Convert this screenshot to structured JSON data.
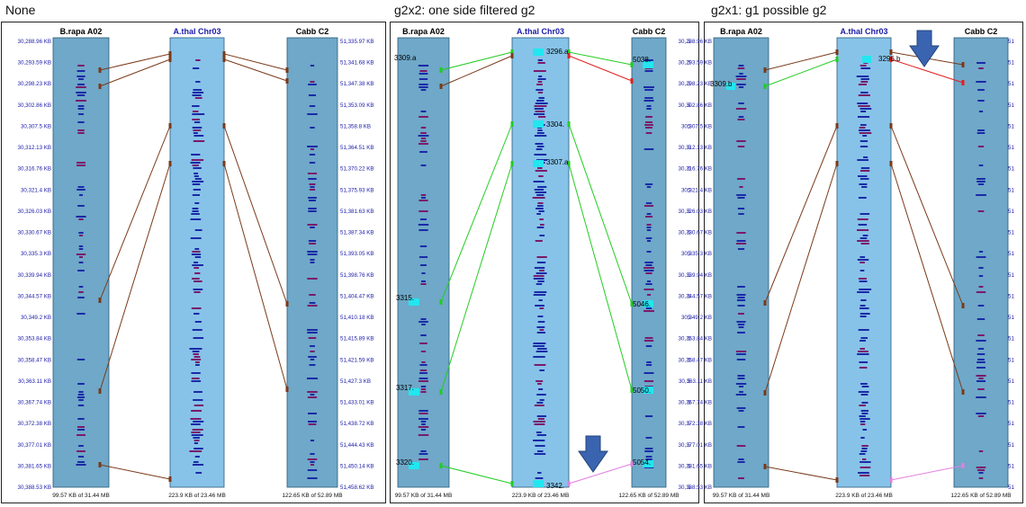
{
  "panels": [
    {
      "title": "None",
      "tracks": [
        {
          "name": "B.rapa A02",
          "footer": "99.57 KB of 31.44 MB"
        },
        {
          "name": "A.thal Chr03",
          "footer": "223.9 KB of 23.46 MB"
        },
        {
          "name": "Cabb C2",
          "footer": "122.65 KB of 52.89 MB"
        }
      ],
      "left_ticks": [
        "30,288.96 KB",
        "30,293.59 KB",
        "30,298.23 KB",
        "30,302.86 KB",
        "30,307.5 KB",
        "30,312.13 KB",
        "30,316.76 KB",
        "30,321.4 KB",
        "30,326.03 KB",
        "30,330.67 KB",
        "30,335.3 KB",
        "30,339.94 KB",
        "30,344.57 KB",
        "30,349.2 KB",
        "30,353.84 KB",
        "30,358.47 KB",
        "30,363.11 KB",
        "30,367.74 KB",
        "30,372.38 KB",
        "30,377.01 KB",
        "30,381.65 KB",
        "30,388.53 KB"
      ],
      "right_ticks": [
        "51,335.97 KB",
        "51,341.68 KB",
        "51,347.38 KB",
        "51,353.09 KB",
        "51,358.8 KB",
        "51,364.51 KB",
        "51,370.22 KB",
        "51,375.93 KB",
        "51,381.63 KB",
        "51,387.34 KB",
        "51,393.05 KB",
        "51,398.76 KB",
        "51,404.47 KB",
        "51,410.18 KB",
        "51,415.89 KB",
        "51,421.59 KB",
        "51,427.3 KB",
        "51,433.01 KB",
        "51,438.72 KB",
        "51,444.43 KB",
        "51,450.14 KB",
        "51,458.62 KB"
      ],
      "labels": []
    },
    {
      "title": "g2x2: one side filtered g2",
      "tracks": [
        {
          "name": "B.rapa A02",
          "footer": "99.57 KB of 31.44 MB"
        },
        {
          "name": "A.thal Chr03",
          "footer": "223.9 KB of 23.46 MB"
        },
        {
          "name": "Cabb C2",
          "footer": "122.65 KB of 52.89 MB"
        }
      ],
      "left_ticks": [],
      "right_ticks": [
        "5",
        "5",
        "5",
        "5",
        "5",
        "5",
        "5",
        "5",
        "5",
        "5",
        "5",
        "5",
        "5",
        "5",
        "5",
        "5",
        "5",
        "5",
        "5",
        "5",
        "5",
        "5"
      ],
      "labels": [
        "3309.a",
        "3296.a",
        "5038.",
        "3304.",
        "3307.a",
        "3315.",
        "5046.",
        "3317.",
        "5050.",
        "3320.",
        "3342.",
        "5054."
      ]
    },
    {
      "title": "g2x1: g1 possible g2",
      "tracks": [
        {
          "name": "B.rapa A02",
          "footer": "99.57 KB of 31.44 MB"
        },
        {
          "name": "A.thal Chr03",
          "footer": "223.9 KB of 23.46 MB"
        },
        {
          "name": "Cabb C2",
          "footer": "122.65 KB of 52.89 MB"
        }
      ],
      "left_ticks": [
        "30,288.96 KB",
        "30,293.59 KB",
        "30,298.23 KB",
        "30,302.86 KB",
        "30,307.5 KB",
        "30,312.13 KB",
        "30,316.76 KB",
        "30,321.4 KB",
        "30,326.03 KB",
        "30,330.67 KB",
        "30,335.3 KB",
        "30,339.94 KB",
        "30,344.57 KB",
        "30,349.2 KB",
        "30,353.84 KB",
        "30,358.47 KB",
        "30,363.11 KB",
        "30,367.74 KB",
        "30,372.38 KB",
        "30,377.01 KB",
        "30,381.65 KB",
        "30,388.53 KB"
      ],
      "right_ticks": [
        "51",
        "51",
        "51",
        "51",
        "51",
        "51",
        "51",
        "51",
        "51",
        "51",
        "51",
        "51",
        "51",
        "51",
        "51",
        "51",
        "51",
        "51",
        "51",
        "51",
        "51",
        "51"
      ],
      "labels": [
        "3309.b",
        "3296.b"
      ]
    }
  ],
  "colors": {
    "panel_bg_outer": "#6fa8c8",
    "panel_bg_center": "#87c3e8",
    "gene_blue": "#1a2aa8",
    "gene_purple": "#7a1a6a",
    "gene_cyan": "#22e6f0",
    "tick_text": "#1a1aaa",
    "line_brown": "#7a3a1a",
    "line_green": "#22cc22",
    "line_red": "#e02020",
    "line_pink": "#e080e0",
    "arrow": "#3a64b0"
  },
  "icons": {
    "down_arrow": "arrow-down-icon"
  }
}
